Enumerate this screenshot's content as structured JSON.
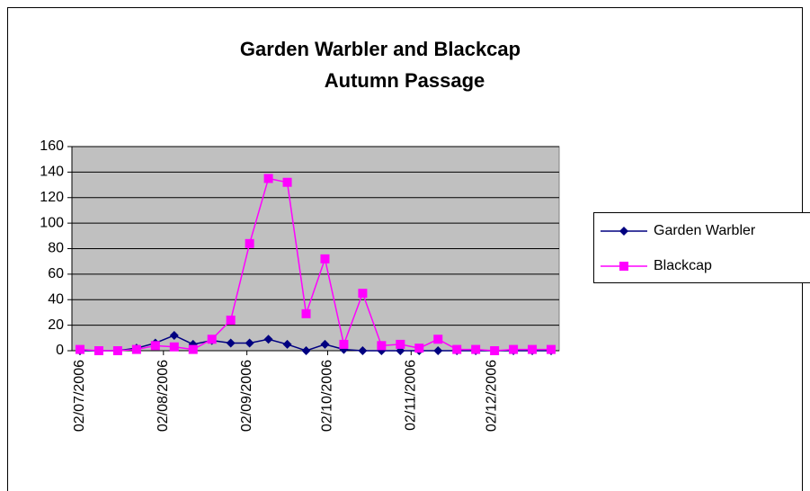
{
  "chart_data": {
    "type": "line",
    "title": [
      "Garden Warbler and Blackcap",
      "Autumn Passage"
    ],
    "x": [
      "02/07/2006",
      "09/07/2006",
      "16/07/2006",
      "23/07/2006",
      "30/07/2006",
      "06/08/2006",
      "13/08/2006",
      "20/08/2006",
      "27/08/2006",
      "03/09/2006",
      "10/09/2006",
      "17/09/2006",
      "24/09/2006",
      "01/10/2006",
      "08/10/2006",
      "15/10/2006",
      "22/10/2006",
      "29/10/2006",
      "05/11/2006",
      "12/11/2006",
      "19/11/2006",
      "26/11/2006",
      "03/12/2006",
      "10/12/2006",
      "17/12/2006",
      "24/12/2006"
    ],
    "series": [
      {
        "name": "Garden Warbler",
        "color": "#000080",
        "marker": "diamond",
        "values": [
          0,
          0,
          0,
          2,
          6,
          12,
          5,
          8,
          6,
          6,
          9,
          5,
          0,
          5,
          1,
          0,
          0,
          0,
          0,
          0,
          0,
          0,
          0,
          0,
          0,
          0
        ]
      },
      {
        "name": "Blackcap",
        "color": "#ff00ff",
        "marker": "square",
        "values": [
          1,
          0,
          0,
          1,
          4,
          3,
          1,
          9,
          24,
          84,
          135,
          132,
          29,
          72,
          5,
          45,
          4,
          5,
          2,
          9,
          1,
          1,
          0,
          1,
          1,
          1
        ]
      }
    ],
    "xlim": [
      "29/06/2006",
      "27/12/2006"
    ],
    "xticks": [
      "02/07/2006",
      "02/08/2006",
      "02/09/2006",
      "02/10/2006",
      "02/11/2006",
      "02/12/2006"
    ],
    "ylim": [
      0,
      160
    ],
    "yticks": [
      0,
      20,
      40,
      60,
      80,
      100,
      120,
      140,
      160
    ],
    "grid": true,
    "plot_background": "#c0c0c0",
    "legend": "right"
  }
}
